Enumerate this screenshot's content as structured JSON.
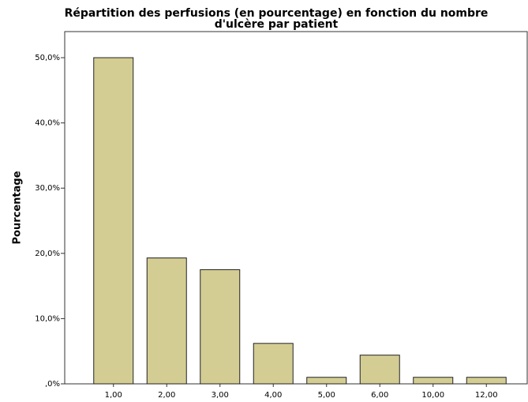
{
  "chart_data": {
    "type": "bar",
    "title": [
      "Répartition des perfusions (en pourcentage) en fonction du nombre",
      "d'ulcère par patient"
    ],
    "ylabel": "Pourcentage",
    "categories": [
      "1,00",
      "2,00",
      "3,00",
      "4,00",
      "5,00",
      "6,00",
      "10,00",
      "12,00"
    ],
    "values": [
      50,
      19.3,
      17.5,
      6.2,
      1.0,
      4.4,
      1.0,
      1.0
    ],
    "color": "#d3cd94",
    "ylim": [
      0,
      54
    ],
    "yticks": [
      {
        "value": 0,
        "label": ",0%"
      },
      {
        "value": 10,
        "label": "10,0%"
      },
      {
        "value": 20,
        "label": "20,0%"
      },
      {
        "value": 30,
        "label": "30,0%"
      },
      {
        "value": 40,
        "label": "40,0%"
      },
      {
        "value": 50,
        "label": "50,0%"
      }
    ]
  }
}
